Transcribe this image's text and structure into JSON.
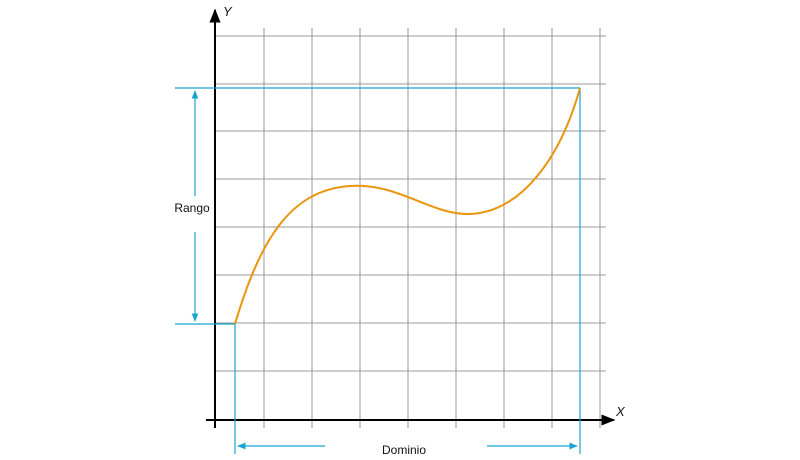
{
  "diagram": {
    "x_axis_label": "X",
    "y_axis_label": "Y",
    "range_label": "Rango",
    "domain_label": "Dominio",
    "colors": {
      "curve": "#e8960c",
      "guides": "#1aa3d1",
      "grid": "#999999",
      "axes": "#000000"
    }
  }
}
